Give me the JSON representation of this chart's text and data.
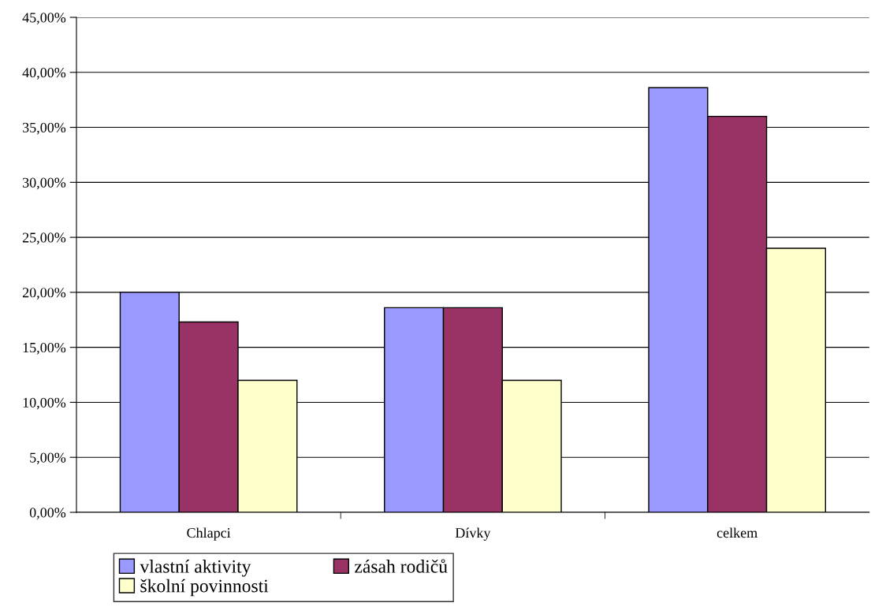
{
  "chart_data": {
    "type": "bar",
    "categories": [
      "Chlapci",
      "Dívky",
      "celkem"
    ],
    "series": [
      {
        "name": "vlastní aktivity",
        "color": "#9999ff",
        "values": [
          20.0,
          18.6,
          38.6
        ]
      },
      {
        "name": "zásah rodičů",
        "color": "#993366",
        "values": [
          17.3,
          18.6,
          36.0
        ]
      },
      {
        "name": "školní povinnosti",
        "color": "#ffffcc",
        "values": [
          12.0,
          12.0,
          24.0
        ]
      }
    ],
    "ylim": [
      0,
      45
    ],
    "yticks": [
      {
        "value": 0,
        "label": "0,00%"
      },
      {
        "value": 5,
        "label": "5,00%"
      },
      {
        "value": 10,
        "label": "10,00%"
      },
      {
        "value": 15,
        "label": "15,00%"
      },
      {
        "value": 20,
        "label": "20,00%"
      },
      {
        "value": 25,
        "label": "25,00%"
      },
      {
        "value": 30,
        "label": "30,00%"
      },
      {
        "value": 35,
        "label": "35,00%"
      },
      {
        "value": 40,
        "label": "40,00%"
      },
      {
        "value": 45,
        "label": "45,00%"
      }
    ],
    "grid": "y",
    "legend": "bottom"
  }
}
